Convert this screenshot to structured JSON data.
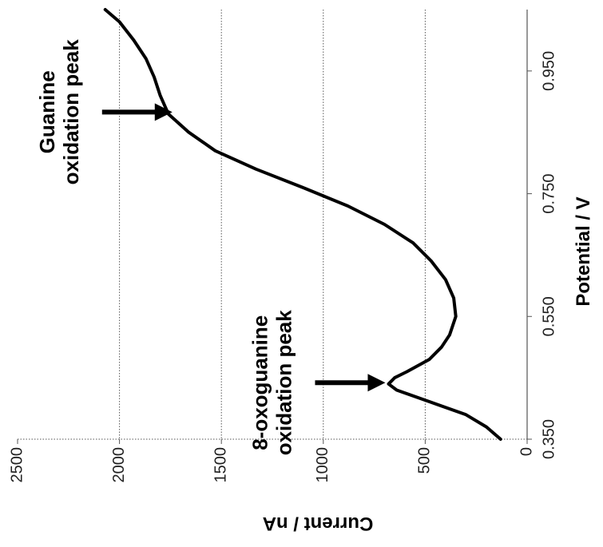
{
  "chart_data": {
    "type": "line",
    "title": "",
    "xlabel": "Potential / V",
    "ylabel": "Current / nA",
    "xlim": [
      0.35,
      1.05
    ],
    "ylim": [
      0,
      2500
    ],
    "x_ticks": [
      "0.350",
      "0.550",
      "0.750",
      "0.950"
    ],
    "y_ticks": [
      "0",
      "500",
      "1000",
      "1500",
      "2000",
      "2500"
    ],
    "grid": true,
    "legend": "none",
    "orientation": "rotated 90 degrees counter-clockwise",
    "series": [
      {
        "line_color": "#000000",
        "x": [
          0.35,
          0.37,
          0.39,
          0.41,
          0.43,
          0.44,
          0.45,
          0.46,
          0.48,
          0.5,
          0.52,
          0.55,
          0.58,
          0.61,
          0.64,
          0.67,
          0.7,
          0.73,
          0.76,
          0.79,
          0.82,
          0.85,
          0.88,
          0.91,
          0.94,
          0.97,
          1.0,
          1.03,
          1.05
        ],
        "y": [
          130,
          200,
          300,
          470,
          640,
          680,
          650,
          590,
          480,
          420,
          380,
          350,
          360,
          400,
          470,
          560,
          700,
          880,
          1100,
          1330,
          1530,
          1660,
          1760,
          1800,
          1830,
          1870,
          1930,
          2000,
          2070
        ]
      }
    ],
    "annotations": [
      {
        "line1": "Guanine",
        "line2": "oxidation peak",
        "points_to": {
          "x": 0.883,
          "y": 1725
        }
      },
      {
        "line1": "8-oxoguanine",
        "line2": "oxidation peak",
        "points_to": {
          "x": 0.442,
          "y": 680
        }
      }
    ]
  }
}
